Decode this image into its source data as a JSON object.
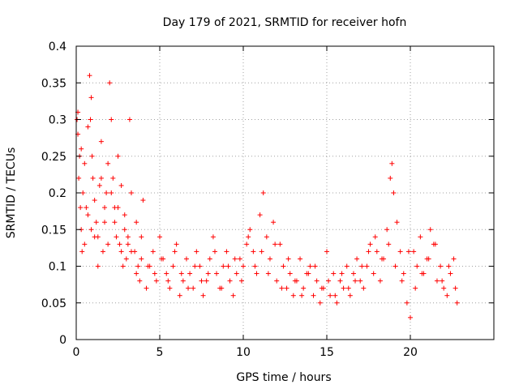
{
  "chart_data": {
    "type": "scatter",
    "title": "Day 179 of 2021, SRMTID for receiver hofn",
    "xlabel": "GPS time / hours",
    "ylabel": "SRMTID / TECUs",
    "xlim": [
      0,
      25
    ],
    "ylim": [
      0,
      0.4
    ],
    "xticks": [
      0,
      5,
      10,
      15,
      20
    ],
    "xtick_labels": [
      "0",
      "5",
      "10",
      "15",
      "20"
    ],
    "yticks": [
      0,
      0.05,
      0.1,
      0.15,
      0.2,
      0.25,
      0.3,
      0.35,
      0.4
    ],
    "ytick_labels": [
      "0",
      "0.05",
      "0.1",
      "0.15",
      "0.2",
      "0.25",
      "0.3",
      "0.35",
      "0.4"
    ],
    "grid": true,
    "marker": "+",
    "marker_color": "#ff0000",
    "series": [
      {
        "name": "SRMTID",
        "x": [
          0.05,
          0.1,
          0.15,
          0.2,
          0.25,
          0.3,
          0.35,
          0.4,
          0.5,
          0.6,
          0.7,
          0.8,
          0.85,
          0.9,
          0.95,
          1.0,
          1.1,
          1.2,
          1.3,
          1.4,
          1.5,
          1.6,
          1.7,
          1.8,
          1.9,
          2.0,
          2.1,
          2.2,
          2.3,
          2.4,
          2.5,
          2.6,
          2.7,
          2.8,
          2.9,
          3.0,
          3.1,
          3.2,
          3.3,
          3.5,
          3.6,
          3.7,
          3.8,
          3.9,
          4.0,
          4.2,
          4.4,
          4.6,
          4.8,
          5.0,
          5.2,
          5.4,
          5.6,
          5.8,
          6.0,
          6.2,
          6.4,
          6.6,
          6.8,
          7.0,
          7.2,
          7.4,
          7.6,
          7.8,
          8.0,
          8.2,
          8.4,
          8.6,
          8.8,
          9.0,
          9.2,
          9.4,
          9.6,
          9.8,
          10.0,
          10.2,
          10.4,
          10.6,
          10.8,
          11.0,
          11.2,
          11.4,
          11.6,
          11.8,
          12.0,
          12.2,
          12.4,
          12.6,
          12.8,
          13.0,
          13.2,
          13.4,
          13.6,
          13.8,
          14.0,
          14.2,
          14.4,
          14.6,
          14.8,
          15.0,
          15.2,
          15.4,
          15.6,
          15.8,
          16.0,
          16.2,
          16.4,
          16.6,
          16.8,
          17.0,
          17.2,
          17.4,
          17.6,
          17.8,
          18.0,
          18.2,
          18.4,
          18.6,
          18.8,
          18.9,
          19.0,
          19.2,
          19.4,
          19.6,
          19.8,
          20.0,
          20.2,
          20.4,
          20.6,
          20.8,
          21.0,
          21.2,
          21.4,
          21.6,
          21.8,
          22.0,
          22.2,
          22.4,
          22.6,
          22.8,
          0.1,
          0.3,
          0.5,
          0.7,
          0.9,
          1.1,
          1.3,
          1.5,
          1.7,
          1.9,
          2.1,
          2.3,
          2.5,
          2.7,
          2.9,
          3.1,
          3.3,
          3.6,
          3.9,
          4.3,
          4.7,
          5.1,
          5.5,
          5.9,
          6.3,
          6.7,
          7.1,
          7.5,
          7.9,
          8.3,
          8.7,
          9.1,
          9.5,
          9.9,
          10.3,
          10.7,
          11.1,
          11.5,
          11.9,
          12.3,
          12.7,
          13.1,
          13.5,
          13.9,
          14.3,
          14.7,
          15.1,
          15.5,
          15.9,
          16.3,
          16.7,
          17.1,
          17.5,
          17.9,
          18.3,
          18.7,
          19.1,
          19.5,
          19.9,
          20.3,
          20.7,
          21.1,
          21.5,
          21.9,
          22.3,
          22.7
        ],
        "y": [
          0.3,
          0.28,
          0.22,
          0.25,
          0.18,
          0.15,
          0.12,
          0.2,
          0.24,
          0.18,
          0.29,
          0.36,
          0.3,
          0.33,
          0.25,
          0.22,
          0.14,
          0.16,
          0.1,
          0.21,
          0.27,
          0.12,
          0.18,
          0.2,
          0.24,
          0.35,
          0.3,
          0.22,
          0.16,
          0.14,
          0.18,
          0.13,
          0.12,
          0.1,
          0.15,
          0.11,
          0.13,
          0.3,
          0.2,
          0.12,
          0.09,
          0.1,
          0.08,
          0.11,
          0.19,
          0.07,
          0.1,
          0.12,
          0.08,
          0.14,
          0.11,
          0.09,
          0.07,
          0.1,
          0.13,
          0.06,
          0.08,
          0.11,
          0.09,
          0.07,
          0.12,
          0.1,
          0.06,
          0.08,
          0.11,
          0.14,
          0.09,
          0.07,
          0.1,
          0.12,
          0.08,
          0.06,
          0.09,
          0.11,
          0.1,
          0.13,
          0.15,
          0.12,
          0.09,
          0.17,
          0.2,
          0.14,
          0.11,
          0.16,
          0.08,
          0.13,
          0.1,
          0.07,
          0.09,
          0.06,
          0.08,
          0.11,
          0.07,
          0.09,
          0.1,
          0.06,
          0.08,
          0.05,
          0.07,
          0.12,
          0.06,
          0.09,
          0.05,
          0.08,
          0.07,
          0.1,
          0.06,
          0.09,
          0.11,
          0.08,
          0.07,
          0.1,
          0.13,
          0.09,
          0.12,
          0.08,
          0.11,
          0.15,
          0.22,
          0.24,
          0.2,
          0.16,
          0.12,
          0.09,
          0.05,
          0.03,
          0.12,
          0.1,
          0.14,
          0.09,
          0.11,
          0.15,
          0.13,
          0.08,
          0.1,
          0.07,
          0.06,
          0.09,
          0.11,
          0.05,
          0.31,
          0.26,
          0.13,
          0.17,
          0.15,
          0.19,
          0.14,
          0.22,
          0.16,
          0.13,
          0.2,
          0.18,
          0.25,
          0.21,
          0.17,
          0.14,
          0.12,
          0.16,
          0.14,
          0.1,
          0.09,
          0.11,
          0.08,
          0.12,
          0.09,
          0.07,
          0.1,
          0.08,
          0.09,
          0.12,
          0.07,
          0.1,
          0.11,
          0.08,
          0.14,
          0.1,
          0.12,
          0.09,
          0.13,
          0.07,
          0.11,
          0.08,
          0.06,
          0.09,
          0.1,
          0.07,
          0.08,
          0.06,
          0.09,
          0.07,
          0.08,
          0.1,
          0.12,
          0.14,
          0.11,
          0.13,
          0.1,
          0.08,
          0.12,
          0.07,
          0.09,
          0.11,
          0.13,
          0.08,
          0.1,
          0.07
        ]
      }
    ]
  }
}
